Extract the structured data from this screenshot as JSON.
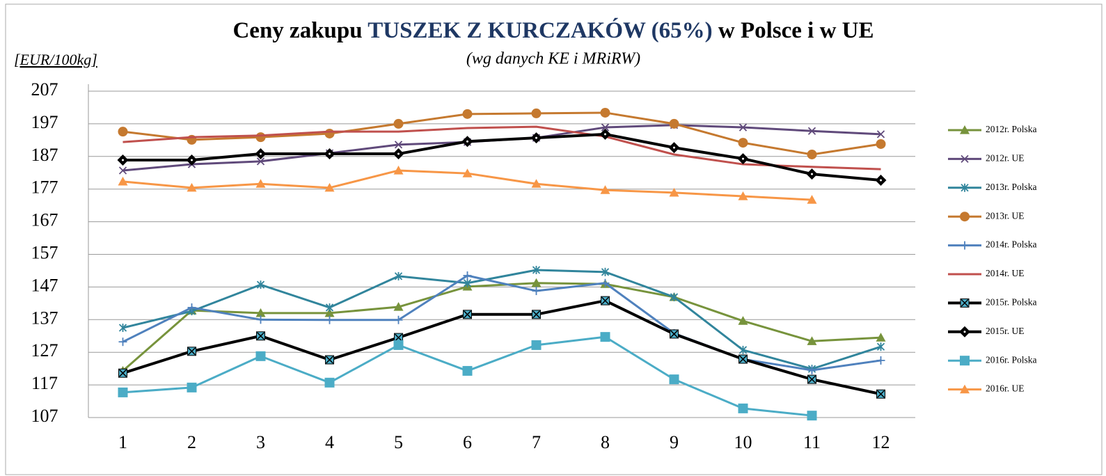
{
  "chart_data": {
    "type": "line",
    "title": [
      "Ceny zakupu",
      "TUSZEK Z KURCZAKÓW (65%)",
      "w Polsce i w UE"
    ],
    "title_highlight_color": "#1f3864",
    "subtitle": "(wg  danych  KE i MRiRW)",
    "y_label": "[EUR/100kg]",
    "categories": [
      "1",
      "2",
      "3",
      "4",
      "5",
      "6",
      "7",
      "8",
      "9",
      "10",
      "11",
      "12"
    ],
    "ylim": [
      107,
      207
    ],
    "yticks": [
      107,
      117,
      127,
      137,
      147,
      157,
      167,
      177,
      187,
      197,
      207
    ],
    "grid": true,
    "legend": "right",
    "series": [
      {
        "name": "2012r. Polska",
        "color": "#77933c",
        "marker": "triangle",
        "values": [
          121.3,
          139.8,
          139,
          139,
          140.9,
          147.1,
          148.2,
          147.9,
          143.9,
          136.6,
          130.4,
          131.5
        ]
      },
      {
        "name": "2012r. UE",
        "color": "#604a7b",
        "marker": "x",
        "values": [
          182.7,
          184.6,
          185.5,
          188,
          190.6,
          191.4,
          192.7,
          195.9,
          196.6,
          195.9,
          194.8,
          193.8
        ]
      },
      {
        "name": "2013r. Polska",
        "color": "#31859c",
        "marker": "asterisk",
        "values": [
          134.5,
          139.6,
          147.7,
          140.7,
          150.3,
          148.2,
          152.2,
          151.6,
          143.9,
          127.7,
          121.9,
          128.7
        ]
      },
      {
        "name": "2013r. UE",
        "color": "#c5792f",
        "marker": "circle",
        "values": [
          194.6,
          192.1,
          192.9,
          194,
          197,
          200,
          200.2,
          200.4,
          197,
          191.2,
          187.6,
          190.8
        ]
      },
      {
        "name": "2014r. Polska",
        "color": "#4f81bd",
        "marker": "plus",
        "values": [
          130.2,
          140.7,
          137,
          136.9,
          136.9,
          150.5,
          145.8,
          148.2,
          132.8,
          124.9,
          121.5,
          124.5
        ]
      },
      {
        "name": "2014r. UE",
        "color": "#c0504d",
        "marker": "none",
        "values": [
          191.4,
          192.9,
          193.4,
          194.6,
          194.6,
          195.7,
          196.1,
          193.1,
          187.6,
          184.6,
          183.8,
          183.1
        ]
      },
      {
        "name": "2015r. Polska",
        "color": "#000000",
        "marker": "square-x",
        "marker_color": "#4bacc6",
        "values": [
          120.6,
          127.3,
          132,
          124.7,
          131.5,
          138.6,
          138.6,
          142.8,
          132.6,
          124.9,
          118.7,
          114.2
        ]
      },
      {
        "name": "2015r. UE",
        "color": "#000000",
        "marker": "diamond",
        "values": [
          185.9,
          185.9,
          187.8,
          187.8,
          187.8,
          191.6,
          192.7,
          193.8,
          189.7,
          186.3,
          181.6,
          179.7
        ]
      },
      {
        "name": "2016r. Polska",
        "color": "#4bacc6",
        "marker": "square",
        "values": [
          114.7,
          116.2,
          125.8,
          117.7,
          129.2,
          121.3,
          129.2,
          131.7,
          118.7,
          109.8,
          107.6,
          null
        ]
      },
      {
        "name": "2016r. UE",
        "color": "#f79646",
        "marker": "triangle",
        "values": [
          179.3,
          177.4,
          178.6,
          177.4,
          182.7,
          181.8,
          178.6,
          176.7,
          175.9,
          174.8,
          173.7,
          null
        ]
      }
    ]
  }
}
